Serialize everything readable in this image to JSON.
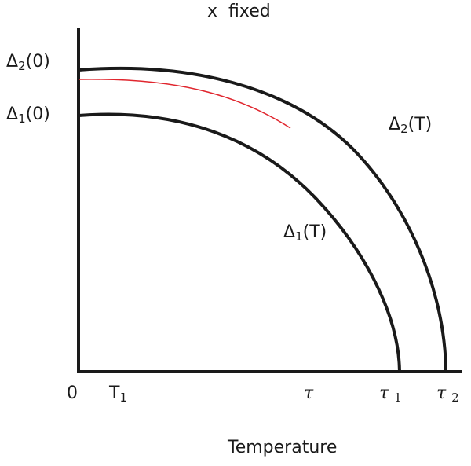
{
  "title": "x  fixed",
  "xlabel": "Temperature",
  "origin_label": "0",
  "labels": {
    "delta2_0": {
      "sym": "Δ",
      "sub": "2",
      "rest": "(0)"
    },
    "delta1_0": {
      "sym": "Δ",
      "sub": "1",
      "rest": "(0)"
    },
    "delta2_T": {
      "sym": "Δ",
      "sub": "2",
      "rest": "(T)"
    },
    "delta1_T": {
      "sym": "Δ",
      "sub": "1",
      "rest": "(T)"
    },
    "T1": {
      "sym": "T",
      "sub": "1"
    },
    "tau": {
      "sym": "τ"
    },
    "tau1": {
      "sym": "τ",
      "sub": "1"
    },
    "tau2": {
      "sym": "τ",
      "sub": "2"
    }
  },
  "colors": {
    "axis": "#1a1a1a",
    "curve": "#1a1a1a",
    "accent": "#e0262e"
  }
}
